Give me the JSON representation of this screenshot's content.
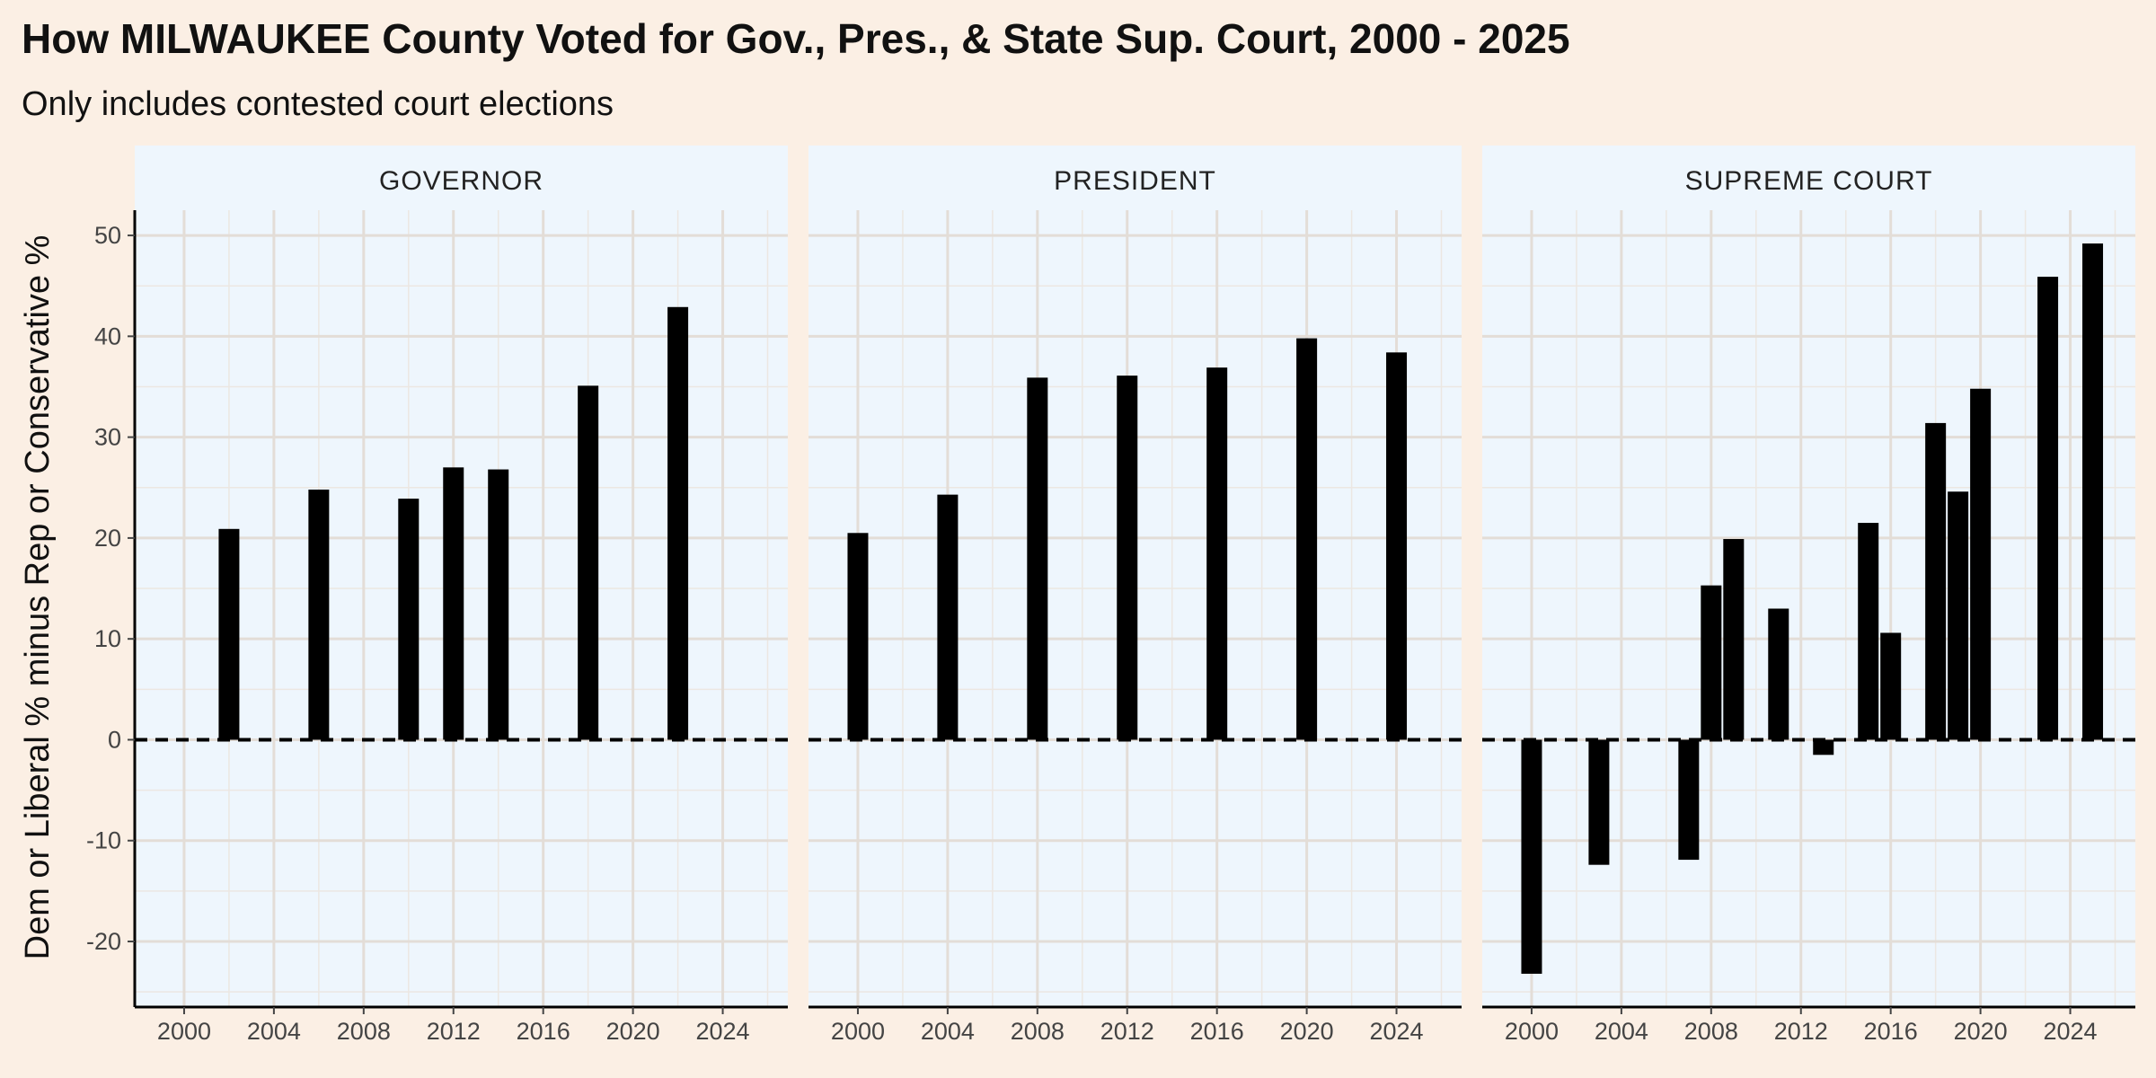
{
  "chart_data": {
    "type": "bar",
    "title": "How MILWAUKEE County Voted for Gov., Pres., & State Sup. Court, 2000 - 2025",
    "subtitle": "Only includes contested court elections",
    "ylabel": "Dem or Liberal % minus Rep or Conservative %",
    "xlabel": "",
    "xlim": [
      1997.8,
      2026.9
    ],
    "ylim": [
      -26.5,
      52.5
    ],
    "x_ticks": [
      2000,
      2004,
      2008,
      2012,
      2016,
      2020,
      2024
    ],
    "y_ticks": [
      -20,
      -10,
      0,
      10,
      20,
      30,
      40,
      50
    ],
    "reference_line": 0,
    "bar_color": "#000000",
    "panel_background": "#eef6fd",
    "page_background": "#fbefe4",
    "grid": true,
    "panels": [
      {
        "name": "GOVERNOR",
        "x": [
          2002,
          2006,
          2010,
          2012,
          2014,
          2018,
          2022
        ],
        "values": [
          20.9,
          24.8,
          23.9,
          27.0,
          26.8,
          35.1,
          42.9
        ]
      },
      {
        "name": "PRESIDENT",
        "x": [
          2000,
          2004,
          2008,
          2012,
          2016,
          2020,
          2024
        ],
        "values": [
          20.5,
          24.3,
          35.9,
          36.1,
          36.9,
          39.8,
          38.4
        ]
      },
      {
        "name": "SUPREME COURT",
        "x": [
          2000,
          2003,
          2007,
          2008,
          2009,
          2011,
          2013,
          2015,
          2016,
          2018,
          2019,
          2020,
          2023,
          2025
        ],
        "values": [
          -23.2,
          -12.4,
          -11.9,
          15.3,
          19.9,
          13.0,
          -1.5,
          21.5,
          10.6,
          31.4,
          24.6,
          34.8,
          45.9,
          49.2
        ]
      }
    ]
  }
}
